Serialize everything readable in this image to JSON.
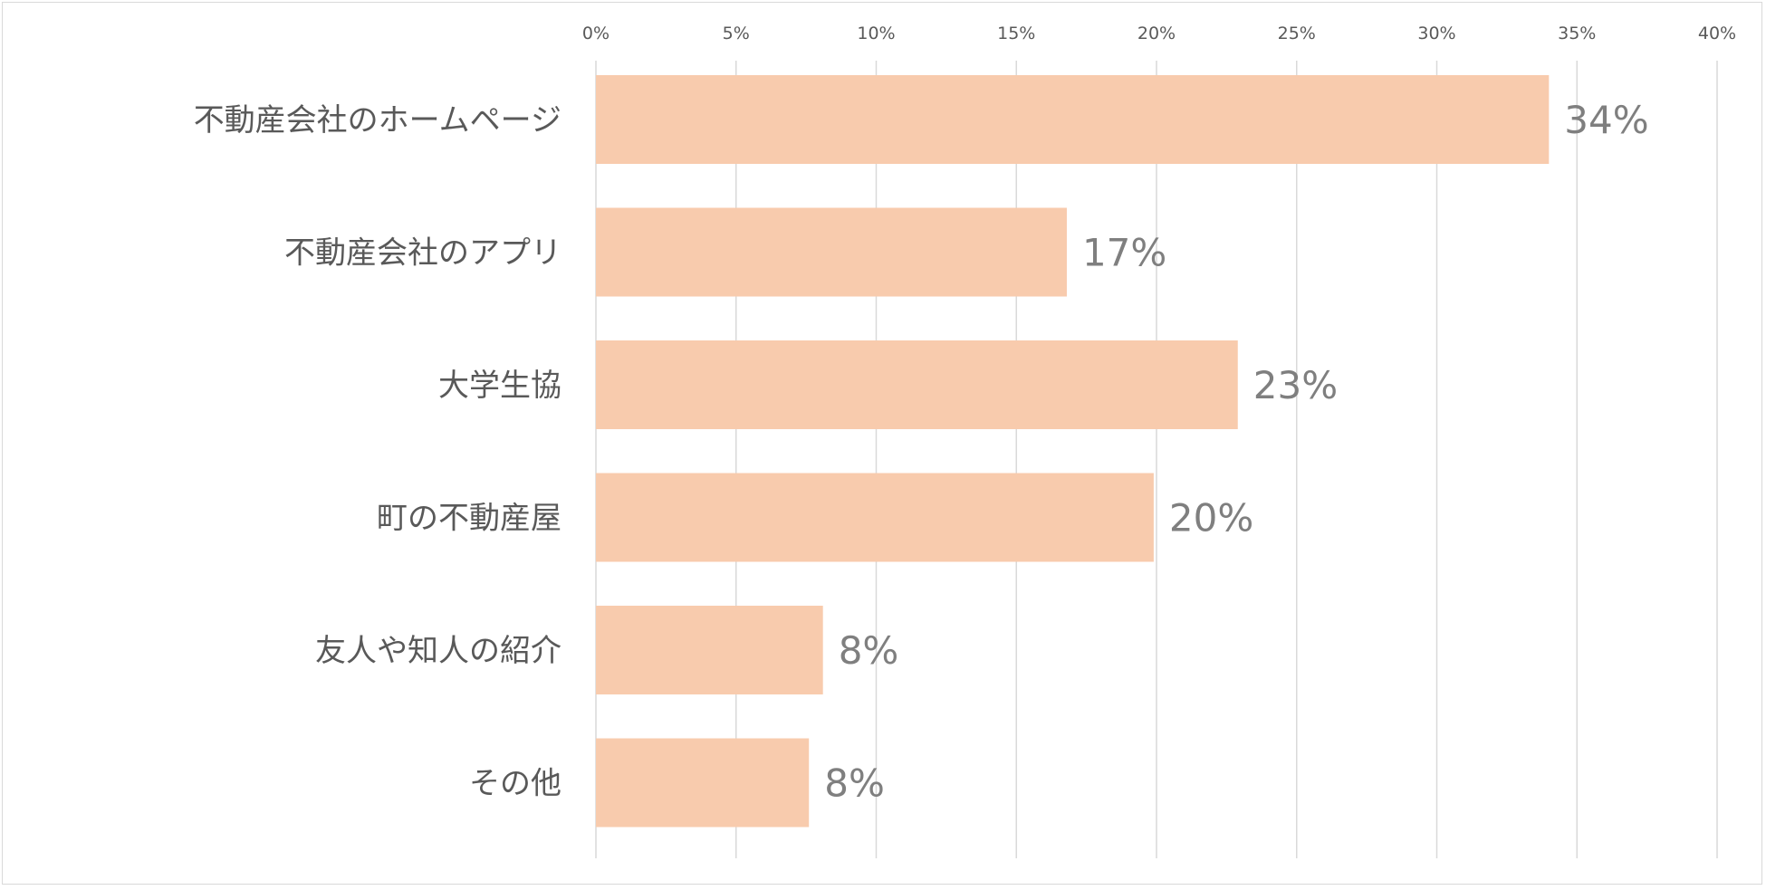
{
  "chart_data": {
    "type": "bar",
    "orientation": "horizontal",
    "title": "",
    "xlabel": "",
    "ylabel": "",
    "xlim": [
      0,
      40
    ],
    "tick_values": [
      0,
      5,
      10,
      15,
      20,
      25,
      30,
      35,
      40
    ],
    "tick_labels": [
      "0%",
      "5%",
      "10%",
      "15%",
      "20%",
      "25%",
      "30%",
      "35%",
      "40%"
    ],
    "axis_position": "top",
    "grid": true,
    "legend": "none",
    "categories": [
      "不動産会社のホームページ",
      "不動産会社のアプリ",
      "大学生協",
      "町の不動産屋",
      "友人や知人の紹介",
      "その他"
    ],
    "values": [
      34,
      16.8,
      22.9,
      19.9,
      8.1,
      7.6
    ],
    "data_labels": [
      "34%",
      "17%",
      "23%",
      "20%",
      "8%",
      "8%"
    ],
    "bar_color": "#F8CBAD",
    "gridline_color": "#d9d9d9"
  }
}
